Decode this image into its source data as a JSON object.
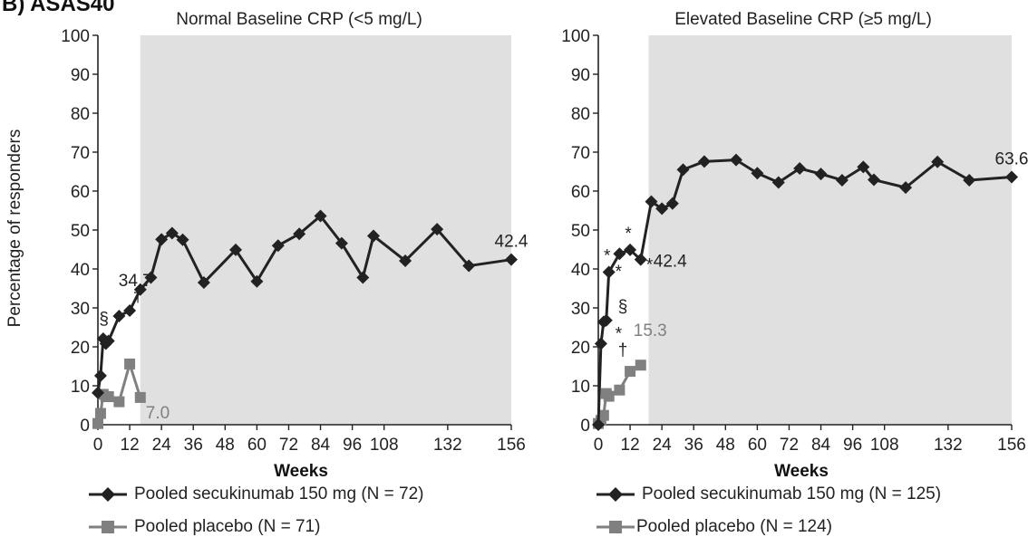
{
  "figure": {
    "panel_label": "B) ASAS40",
    "ylabel": "Percentage of responders",
    "legend_right_spacer": ""
  },
  "colors": {
    "secukinumab": "#222222",
    "placebo": "#808080",
    "shade": "#e0e0e0",
    "text": "#222222"
  },
  "chart_data": [
    {
      "type": "line",
      "title": "Normal Baseline CRP (<5 mg/L)",
      "xlabel": "Weeks",
      "ylabel": "Percentage of responders",
      "xlim": [
        0,
        156
      ],
      "ylim": [
        0,
        100
      ],
      "xticks": [
        0,
        12,
        24,
        36,
        48,
        60,
        72,
        84,
        96,
        108,
        132,
        156
      ],
      "xtick_labels": [
        "0",
        "12",
        "24",
        "36",
        "48",
        "60",
        "72",
        "84",
        "96",
        "108",
        "132",
        "156"
      ],
      "yticks": [
        0,
        10,
        20,
        30,
        40,
        50,
        60,
        70,
        80,
        90,
        100
      ],
      "ytick_labels": [
        "0",
        "10",
        "20",
        "30",
        "40",
        "50",
        "60",
        "70",
        "80",
        "90",
        "100"
      ],
      "shaded_region": {
        "x_start": 16,
        "x_end": 156
      },
      "grid": false,
      "series": [
        {
          "name": "Pooled secukinumab 150 mg (N = 72)",
          "marker": "diamond",
          "color": "#222222",
          "x": [
            0,
            1,
            2,
            3,
            4,
            8,
            12,
            16,
            20,
            24,
            28,
            32,
            40,
            52,
            60,
            68,
            76,
            84,
            92,
            100,
            104,
            116,
            128,
            140,
            156
          ],
          "y": [
            8.2,
            12.6,
            22.1,
            20.8,
            21.5,
            27.9,
            29.3,
            34.7,
            37.8,
            47.6,
            49.2,
            47.5,
            36.5,
            44.9,
            36.8,
            46.0,
            49.0,
            53.6,
            46.6,
            37.8,
            48.5,
            42.1,
            50.2,
            40.8,
            42.4
          ]
        },
        {
          "name": "Pooled placebo (N = 71)",
          "marker": "square",
          "color": "#808080",
          "x": [
            0,
            1,
            2,
            3,
            4,
            8,
            12,
            16
          ],
          "y": [
            0.3,
            2.9,
            7.8,
            7.2,
            7.2,
            5.9,
            15.6,
            7.0
          ]
        }
      ],
      "annotations": [
        {
          "text": "34.7",
          "x": 16,
          "y": 34.7,
          "color": "#222222",
          "pos": "label-347"
        },
        {
          "text": "†",
          "x": 16,
          "y": 34.7,
          "color": "#222222",
          "pos": "dagger-347"
        },
        {
          "text": "§",
          "x": 8,
          "y": 27.9,
          "color": "#222222",
          "pos": "sect-left"
        },
        {
          "text": "42.4",
          "x": 156,
          "y": 42.4,
          "color": "#222222",
          "pos": "end-above"
        },
        {
          "text": "7.0",
          "x": 16,
          "y": 7.0,
          "color": "#808080",
          "pos": "below-right"
        }
      ]
    },
    {
      "type": "line",
      "title": "Elevated Baseline CRP (≥5 mg/L)",
      "xlabel": "Weeks",
      "ylabel": "",
      "xlim": [
        0,
        156
      ],
      "ylim": [
        0,
        100
      ],
      "xticks": [
        0,
        12,
        24,
        36,
        48,
        60,
        72,
        84,
        96,
        108,
        132,
        156
      ],
      "xtick_labels": [
        "0",
        "12",
        "24",
        "36",
        "48",
        "60",
        "72",
        "84",
        "96",
        "108",
        "132",
        "156"
      ],
      "yticks": [
        0,
        10,
        20,
        30,
        40,
        50,
        60,
        70,
        80,
        90,
        100
      ],
      "ytick_labels": [
        "0",
        "10",
        "20",
        "30",
        "40",
        "50",
        "60",
        "70",
        "80",
        "90",
        "100"
      ],
      "shaded_region": {
        "x_start": 19,
        "x_end": 156
      },
      "grid": false,
      "series": [
        {
          "name": "Pooled secukinumab 150 mg (N = 125)",
          "marker": "diamond",
          "color": "#222222",
          "x": [
            0,
            1,
            2,
            3,
            4,
            8,
            12,
            16,
            20,
            24,
            28,
            32,
            40,
            52,
            60,
            68,
            76,
            84,
            92,
            100,
            104,
            116,
            128,
            140,
            156
          ],
          "y": [
            0,
            20.8,
            26.4,
            26.8,
            39.2,
            43.9,
            44.9,
            42.4,
            57.3,
            55.5,
            56.8,
            65.5,
            67.6,
            68.0,
            64.6,
            62.2,
            65.8,
            64.4,
            62.8,
            66.2,
            62.9,
            60.9,
            67.5,
            62.8,
            63.6
          ]
        },
        {
          "name": "Pooled placebo (N = 124)",
          "marker": "square",
          "color": "#808080",
          "x": [
            0,
            1,
            2,
            3,
            4,
            8,
            12,
            16
          ],
          "y": [
            0.3,
            1.1,
            2.4,
            8.0,
            7.3,
            8.9,
            13.7,
            15.3
          ]
        }
      ],
      "annotations": [
        {
          "text": "*",
          "x": 4,
          "y": 39.2,
          "color": "#222222",
          "pos": "above"
        },
        {
          "text": "*",
          "x": 12,
          "y": 44.9,
          "color": "#222222",
          "pos": "above"
        },
        {
          "text": "*",
          "x": 8,
          "y": 43.9,
          "color": "#222222",
          "pos": "below-mid"
        },
        {
          "text": "*",
          "x": 16,
          "y": 42.4,
          "color": "#222222",
          "pos": "star-right"
        },
        {
          "text": "42.4",
          "x": 16,
          "y": 42.4,
          "color": "#222222",
          "pos": "val-right"
        },
        {
          "text": "§",
          "x": 4,
          "y": 30.6,
          "color": "#222222",
          "pos": "right"
        },
        {
          "text": "*",
          "x": 3,
          "y": 23.6,
          "color": "#222222",
          "pos": "right"
        },
        {
          "text": "†",
          "x": 4,
          "y": 19.4,
          "color": "#222222",
          "pos": "right"
        },
        {
          "text": "15.3",
          "x": 16,
          "y": 15.3,
          "color": "#808080",
          "pos": "above-right"
        },
        {
          "text": "63.6",
          "x": 156,
          "y": 63.6,
          "color": "#222222",
          "pos": "end-above"
        }
      ]
    }
  ]
}
